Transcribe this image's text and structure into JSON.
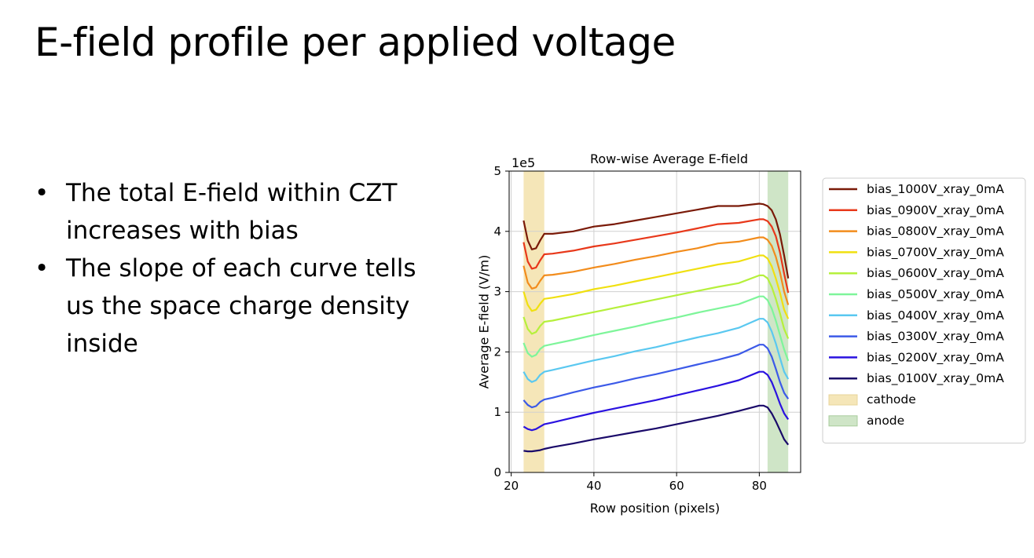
{
  "slide": {
    "title": "E-field profile per applied voltage",
    "bullets": [
      "The total E-field within CZT increases with bias",
      "The slope of each curve tells us the space charge density inside"
    ]
  },
  "chart_data": {
    "type": "line",
    "title": "Row-wise Average E-field",
    "xlabel": "Row position (pixels)",
    "ylabel": "Average E-field (V/m)",
    "y_scale_label": "1e5",
    "xlim": [
      19.5,
      90
    ],
    "ylim": [
      0,
      5
    ],
    "xticks": [
      20,
      40,
      60,
      80
    ],
    "yticks": [
      0,
      1,
      2,
      3,
      4,
      5
    ],
    "grid": true,
    "legend_position": "outside-right",
    "bands": [
      {
        "name": "cathode",
        "x0": 23,
        "x1": 28,
        "color": "#f5e6b8"
      },
      {
        "name": "anode",
        "x0": 82,
        "x1": 87,
        "color": "#cfe5c7"
      }
    ],
    "x": [
      23,
      24,
      25,
      26,
      27,
      28,
      30,
      35,
      40,
      45,
      50,
      55,
      60,
      65,
      70,
      75,
      80,
      81,
      82,
      83,
      84,
      85,
      86,
      87
    ],
    "series": [
      {
        "name": "bias_1000V_xray_0mA",
        "color": "#7a1a08",
        "values": [
          4.18,
          3.85,
          3.7,
          3.72,
          3.85,
          3.96,
          3.96,
          4.0,
          4.08,
          4.12,
          4.18,
          4.24,
          4.3,
          4.36,
          4.42,
          4.42,
          4.46,
          4.45,
          4.42,
          4.35,
          4.2,
          3.95,
          3.6,
          3.22
        ]
      },
      {
        "name": "bias_0900V_xray_0mA",
        "color": "#e8381a",
        "values": [
          3.82,
          3.5,
          3.38,
          3.4,
          3.52,
          3.62,
          3.63,
          3.68,
          3.75,
          3.8,
          3.86,
          3.92,
          3.98,
          4.05,
          4.12,
          4.14,
          4.2,
          4.2,
          4.17,
          4.08,
          3.92,
          3.65,
          3.3,
          2.98
        ]
      },
      {
        "name": "bias_0800V_xray_0mA",
        "color": "#f28c1c",
        "values": [
          3.43,
          3.15,
          3.05,
          3.07,
          3.18,
          3.27,
          3.28,
          3.33,
          3.4,
          3.46,
          3.53,
          3.59,
          3.66,
          3.72,
          3.8,
          3.83,
          3.9,
          3.9,
          3.86,
          3.76,
          3.58,
          3.32,
          3.0,
          2.78
        ]
      },
      {
        "name": "bias_0700V_xray_0mA",
        "color": "#f0e010",
        "values": [
          3.0,
          2.78,
          2.68,
          2.7,
          2.8,
          2.88,
          2.9,
          2.96,
          3.04,
          3.1,
          3.17,
          3.24,
          3.31,
          3.38,
          3.45,
          3.5,
          3.6,
          3.6,
          3.55,
          3.42,
          3.22,
          2.98,
          2.7,
          2.55
        ]
      },
      {
        "name": "bias_0600V_xray_0mA",
        "color": "#b6f03c",
        "values": [
          2.58,
          2.38,
          2.3,
          2.33,
          2.43,
          2.5,
          2.52,
          2.59,
          2.66,
          2.73,
          2.8,
          2.87,
          2.94,
          3.01,
          3.08,
          3.14,
          3.27,
          3.27,
          3.22,
          3.08,
          2.88,
          2.64,
          2.38,
          2.22
        ]
      },
      {
        "name": "bias_0500V_xray_0mA",
        "color": "#7ef59a",
        "values": [
          2.15,
          1.98,
          1.92,
          1.95,
          2.05,
          2.1,
          2.13,
          2.2,
          2.28,
          2.35,
          2.42,
          2.5,
          2.57,
          2.65,
          2.72,
          2.79,
          2.92,
          2.92,
          2.86,
          2.72,
          2.52,
          2.28,
          2.04,
          1.85
        ]
      },
      {
        "name": "bias_0400V_xray_0mA",
        "color": "#5ac8f0",
        "values": [
          1.67,
          1.55,
          1.5,
          1.53,
          1.62,
          1.67,
          1.7,
          1.78,
          1.86,
          1.93,
          2.01,
          2.08,
          2.16,
          2.24,
          2.31,
          2.4,
          2.55,
          2.55,
          2.49,
          2.34,
          2.14,
          1.9,
          1.67,
          1.55
        ]
      },
      {
        "name": "bias_0300V_xray_0mA",
        "color": "#3c5ae8",
        "values": [
          1.2,
          1.12,
          1.08,
          1.1,
          1.17,
          1.21,
          1.24,
          1.33,
          1.41,
          1.48,
          1.56,
          1.63,
          1.71,
          1.79,
          1.87,
          1.96,
          2.12,
          2.12,
          2.06,
          1.92,
          1.72,
          1.5,
          1.32,
          1.22
        ]
      },
      {
        "name": "bias_0200V_xray_0mA",
        "color": "#2a12e0",
        "values": [
          0.76,
          0.72,
          0.7,
          0.72,
          0.76,
          0.8,
          0.83,
          0.91,
          0.99,
          1.06,
          1.13,
          1.2,
          1.28,
          1.36,
          1.44,
          1.53,
          1.67,
          1.67,
          1.62,
          1.5,
          1.33,
          1.14,
          0.98,
          0.88
        ]
      },
      {
        "name": "bias_0100V_xray_0mA",
        "color": "#1a0a6a",
        "values": [
          0.36,
          0.35,
          0.35,
          0.36,
          0.37,
          0.39,
          0.42,
          0.48,
          0.55,
          0.61,
          0.67,
          0.73,
          0.8,
          0.87,
          0.94,
          1.02,
          1.11,
          1.11,
          1.08,
          0.98,
          0.85,
          0.7,
          0.55,
          0.46
        ]
      }
    ]
  }
}
